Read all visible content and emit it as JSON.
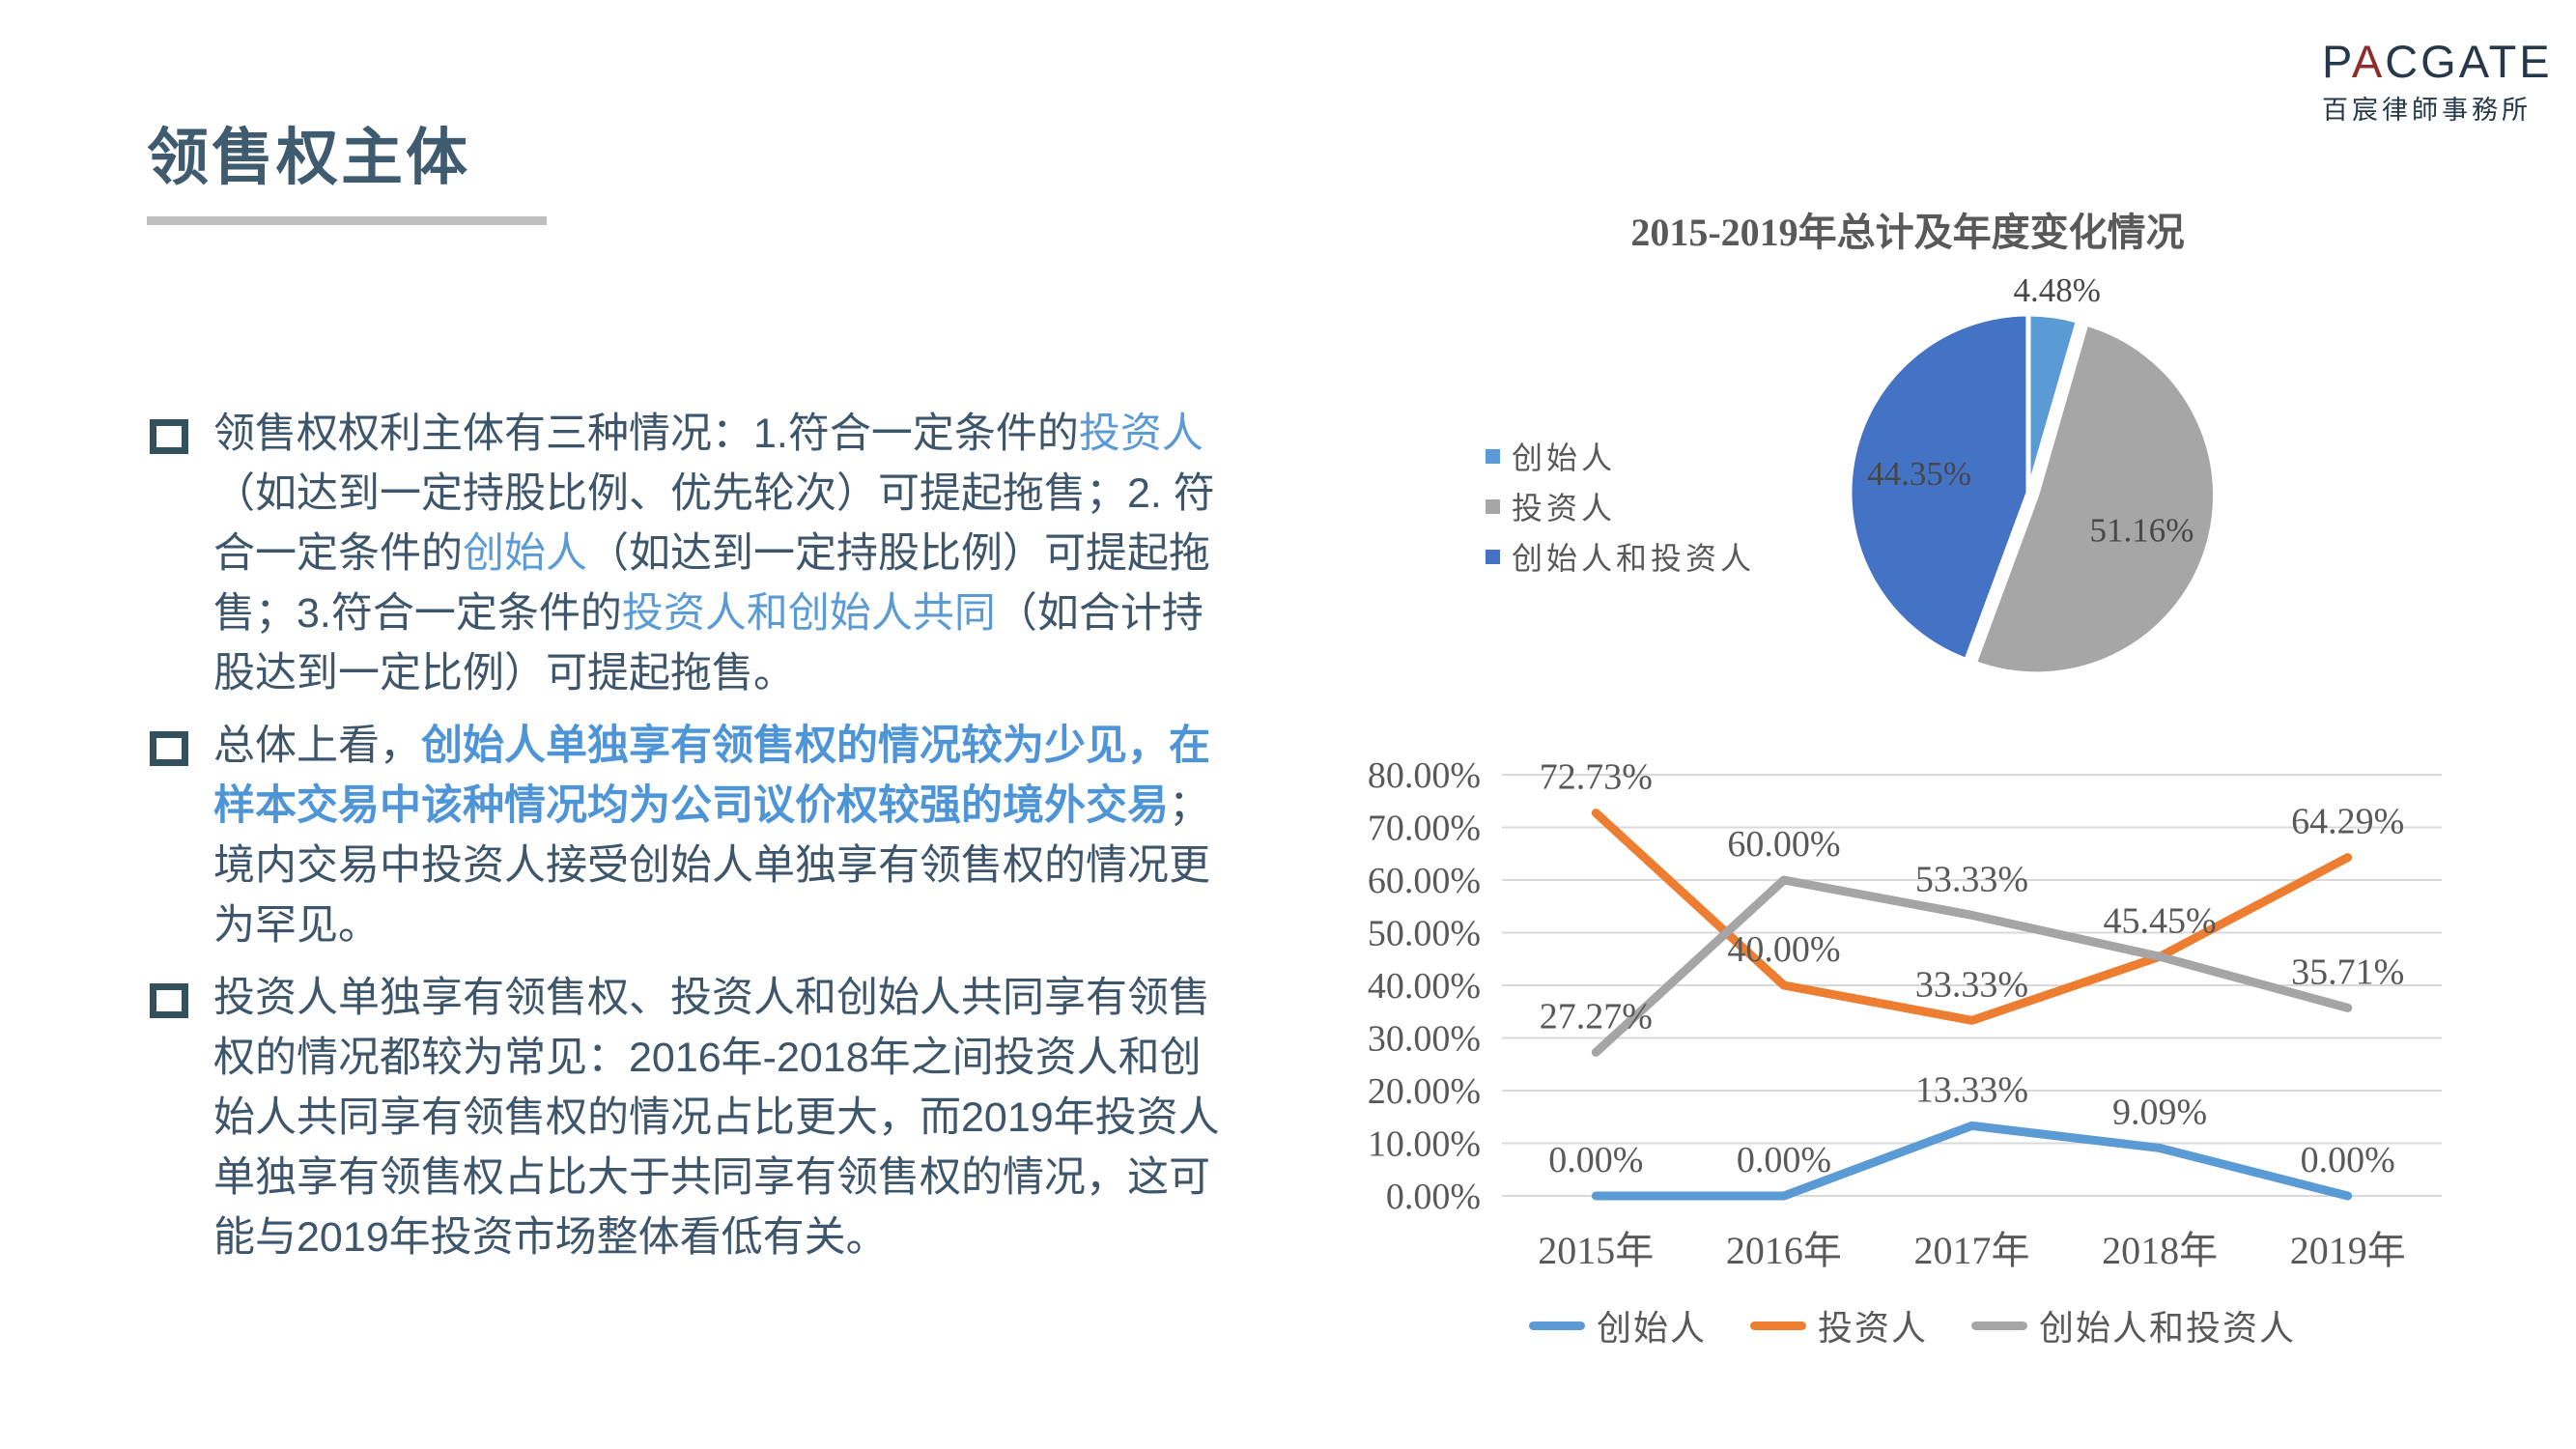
{
  "header": {
    "title": "领售权主体",
    "logo": {
      "p1": "P",
      "a": "A",
      "rest": "CGATE",
      "cn": "百宸律師事務所",
      "navy": "#25394B",
      "red": "#8F2B2B"
    }
  },
  "bullets": {
    "b1": {
      "s1": "领售权权利主体有三种情况：1.符合一定条件的",
      "s2": "投资人",
      "s3": "（如达到一定持股比例、优先轮次）可提起拖售；2. 符合一定条件的",
      "s4": "创始人",
      "s5": "（如达到一定持股比例）可提起拖售；3.符合一定条件的",
      "s6": "投资人和创始人共同",
      "s7": "（如合计持股达到一定比例）可提起拖售。"
    },
    "b2": {
      "s1": "总体上看，",
      "s2": "创始人单独享有领售权的情况较为少见，在样本交易中该种情况均为公司议价权较强的境外交易",
      "s3": "；境内交易中投资人接受创始人单独享有领售权的情况更为罕见。"
    },
    "b3": {
      "s1": "投资人单独享有领售权、投资人和创始人共同享有领售权的情况都较为常见：2016年-2018年之间投资人和创始人共同享有领售权的情况占比更大，而2019年投资人单独享有领售权占比大于共同享有领售权的情况，这可能与2019年投资市场整体看低有关。"
    }
  },
  "chart_data": [
    {
      "type": "pie",
      "title": "2015-2019年总计及年度变化情况",
      "labels": [
        "创始人",
        "投资人",
        "创始人和投资人"
      ],
      "values": [
        4.48,
        51.16,
        44.35
      ],
      "display_labels": [
        "4.48%",
        "51.16%",
        "44.35%"
      ],
      "colors": [
        "#5B9BD5",
        "#A6A6A6",
        "#4472C4"
      ],
      "exploded": [
        false,
        true,
        false
      ],
      "start_angle_deg": 0,
      "direction": "clockwise",
      "legend_position": "left"
    },
    {
      "type": "line",
      "categories": [
        "2015年",
        "2016年",
        "2017年",
        "2018年",
        "2019年"
      ],
      "y_ticks": [
        "80.00%",
        "70.00%",
        "60.00%",
        "50.00%",
        "40.00%",
        "30.00%",
        "20.00%",
        "10.00%",
        "0.00%"
      ],
      "ylim": [
        0,
        80
      ],
      "grid": true,
      "legend_position": "bottom",
      "series": [
        {
          "name": "创始人",
          "color": "#5B9BD5",
          "values": [
            0,
            0,
            13.33,
            9.09,
            0
          ],
          "data_labels": [
            "0.00%",
            "0.00%",
            "13.33%",
            "9.09%",
            "0.00%"
          ]
        },
        {
          "name": "投资人",
          "color": "#ED7D31",
          "values": [
            72.73,
            40,
            33.33,
            45.45,
            64.29
          ],
          "data_labels": [
            "72.73%",
            "40.00%",
            "33.33%",
            "45.45%",
            "64.29%"
          ]
        },
        {
          "name": "创始人和投资人",
          "color": "#A5A5A5",
          "values": [
            27.27,
            60,
            53.33,
            45.45,
            35.71
          ],
          "data_labels": [
            "27.27%",
            "60.00%",
            "53.33%",
            null,
            "35.71%"
          ]
        }
      ]
    }
  ]
}
